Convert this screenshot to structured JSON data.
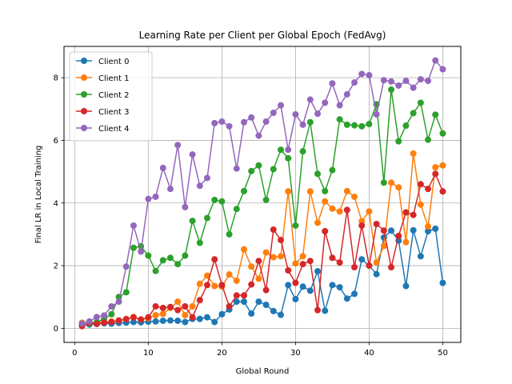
{
  "chart_data": {
    "type": "line",
    "title": "Learning Rate per Client per Global Epoch (FedAvg)",
    "xlabel": "Global Round",
    "ylabel": "Final LR in Local Training",
    "xlim": [
      -1.45,
      52.45
    ],
    "ylim": [
      -0.45,
      9.0
    ],
    "xticks": [
      0,
      10,
      20,
      30,
      40,
      50
    ],
    "yticks": [
      0,
      2,
      4,
      6,
      8
    ],
    "grid": true,
    "legend_position": "top-left",
    "x": [
      1,
      2,
      3,
      4,
      5,
      6,
      7,
      8,
      9,
      10,
      11,
      12,
      13,
      14,
      15,
      16,
      17,
      18,
      19,
      20,
      21,
      22,
      23,
      24,
      25,
      26,
      27,
      28,
      29,
      30,
      31,
      32,
      33,
      34,
      35,
      36,
      37,
      38,
      39,
      40,
      41,
      42,
      43,
      44,
      45,
      46,
      47,
      48,
      49,
      50
    ],
    "series": [
      {
        "name": "Client 0",
        "color": "#1f77b4",
        "values": [
          0.09,
          0.12,
          0.14,
          0.16,
          0.15,
          0.17,
          0.18,
          0.2,
          0.19,
          0.21,
          0.22,
          0.24,
          0.25,
          0.24,
          0.2,
          0.3,
          0.3,
          0.35,
          0.2,
          0.45,
          0.6,
          0.85,
          0.85,
          0.47,
          0.85,
          0.75,
          0.55,
          0.43,
          1.38,
          0.93,
          1.33,
          1.2,
          1.82,
          0.56,
          1.38,
          1.31,
          0.95,
          1.1,
          2.2,
          2.0,
          1.73,
          2.9,
          3.12,
          2.8,
          1.35,
          3.13,
          2.3,
          3.1,
          3.18,
          1.45
        ]
      },
      {
        "name": "Client 1",
        "color": "#ff7f0e",
        "values": [
          0.18,
          0.2,
          0.17,
          0.2,
          0.22,
          0.25,
          0.3,
          0.36,
          0.28,
          0.32,
          0.42,
          0.46,
          0.65,
          0.85,
          0.42,
          0.7,
          1.42,
          1.68,
          1.35,
          1.33,
          1.72,
          1.52,
          2.52,
          1.97,
          1.58,
          2.42,
          2.27,
          2.3,
          4.37,
          2.07,
          2.3,
          4.37,
          3.37,
          4.05,
          3.82,
          3.73,
          4.38,
          4.2,
          3.42,
          3.73,
          2.1,
          2.63,
          4.65,
          4.5,
          2.75,
          5.58,
          3.95,
          3.25,
          5.14,
          5.2
        ]
      },
      {
        "name": "Client 2",
        "color": "#2ca02c",
        "values": [
          0.1,
          0.15,
          0.2,
          0.3,
          0.45,
          1.0,
          1.15,
          2.57,
          2.62,
          2.32,
          1.83,
          2.17,
          2.25,
          2.05,
          2.32,
          3.43,
          2.73,
          3.52,
          4.1,
          4.05,
          3.0,
          3.81,
          4.38,
          5.02,
          5.2,
          4.1,
          5.08,
          5.7,
          5.43,
          3.28,
          5.65,
          6.58,
          4.93,
          4.38,
          5.05,
          6.67,
          6.5,
          6.48,
          6.45,
          6.52,
          7.15,
          4.65,
          7.62,
          5.97,
          6.47,
          6.87,
          7.2,
          6.02,
          6.82,
          6.22
        ]
      },
      {
        "name": "Client 3",
        "color": "#d62728",
        "values": [
          0.07,
          0.17,
          0.14,
          0.18,
          0.2,
          0.25,
          0.29,
          0.35,
          0.28,
          0.35,
          0.7,
          0.65,
          0.68,
          0.58,
          0.7,
          0.35,
          0.9,
          1.38,
          2.2,
          1.38,
          0.7,
          1.05,
          1.05,
          1.4,
          2.15,
          1.22,
          3.15,
          2.82,
          1.85,
          1.45,
          2.05,
          2.15,
          0.58,
          3.1,
          2.25,
          2.1,
          3.78,
          1.95,
          3.28,
          2.0,
          3.33,
          3.12,
          1.95,
          2.95,
          3.7,
          3.62,
          4.6,
          4.45,
          4.93,
          4.37
        ]
      },
      {
        "name": "Client 4",
        "color": "#9467bd",
        "values": [
          0.15,
          0.22,
          0.36,
          0.41,
          0.7,
          0.85,
          1.97,
          3.28,
          2.45,
          4.13,
          4.2,
          5.12,
          4.45,
          5.85,
          3.87,
          5.55,
          4.55,
          4.8,
          6.55,
          6.6,
          6.45,
          5.1,
          6.58,
          6.73,
          6.15,
          6.6,
          6.88,
          7.12,
          5.7,
          6.83,
          6.5,
          7.3,
          6.85,
          7.2,
          7.82,
          7.12,
          7.47,
          7.85,
          8.12,
          8.08,
          6.83,
          7.92,
          7.88,
          7.75,
          7.9,
          7.68,
          7.95,
          7.9,
          8.55,
          8.27
        ]
      }
    ]
  }
}
